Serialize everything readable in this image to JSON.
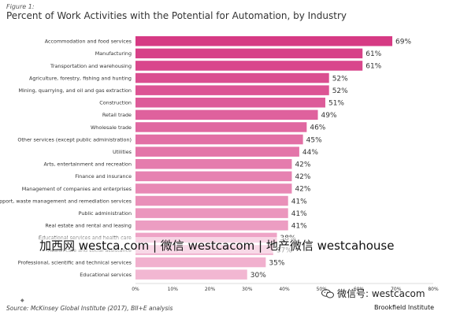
{
  "figure_label": "Figure 1:",
  "title": "Percent of Work Activities with the Potential for Automation, by Industry",
  "watermark": "加西网 westca.com | 微信 westcacom | 地产微信 westcahouse",
  "source": "Source: McKinsey Global Institute (2017), BII+E analysis",
  "wechat_label": "微信号: westcacom",
  "brand": "Brookfield Institute",
  "colors": {
    "bar_dark": "#d63a84",
    "bar_light": "#f2b7d2"
  },
  "chart_data": {
    "type": "bar",
    "orientation": "horizontal",
    "title": "Percent of Work Activities with the Potential for Automation, by Industry",
    "categories": [
      "Accommodation and food services",
      "Manufacturing",
      "Transportation and warehousing",
      "Agriculture, forestry, fishing and hunting",
      "Mining, quarrying, and oil and gas extraction",
      "Construction",
      "Retail trade",
      "Wholesale trade",
      "Other services (except public administration)",
      "Utilities",
      "Arts, entertainment and recreation",
      "Finance and insurance",
      "Management of companies and enterprises",
      "Administrative and support, waste management and remediation services",
      "Public administration",
      "Real estate and rental and leasing",
      "Educational services and health care",
      "Health care and social assistance",
      "Professional, scientific and technical services",
      "Educational services"
    ],
    "values": [
      69,
      61,
      61,
      52,
      52,
      51,
      49,
      46,
      45,
      44,
      42,
      42,
      42,
      41,
      41,
      41,
      38,
      37,
      35,
      30
    ],
    "value_labels": [
      "69%",
      "61%",
      "61%",
      "52%",
      "52%",
      "51%",
      "49%",
      "46%",
      "45%",
      "44%",
      "42%",
      "42%",
      "42%",
      "41%",
      "41%",
      "41%",
      "38%",
      "37%",
      "35%",
      "30%"
    ],
    "x_ticks": [
      "0%",
      "10%",
      "20%",
      "30%",
      "40%",
      "50%",
      "60%",
      "70%",
      "80%"
    ],
    "xlim": [
      0,
      80
    ],
    "grid": false,
    "legend": "none"
  }
}
